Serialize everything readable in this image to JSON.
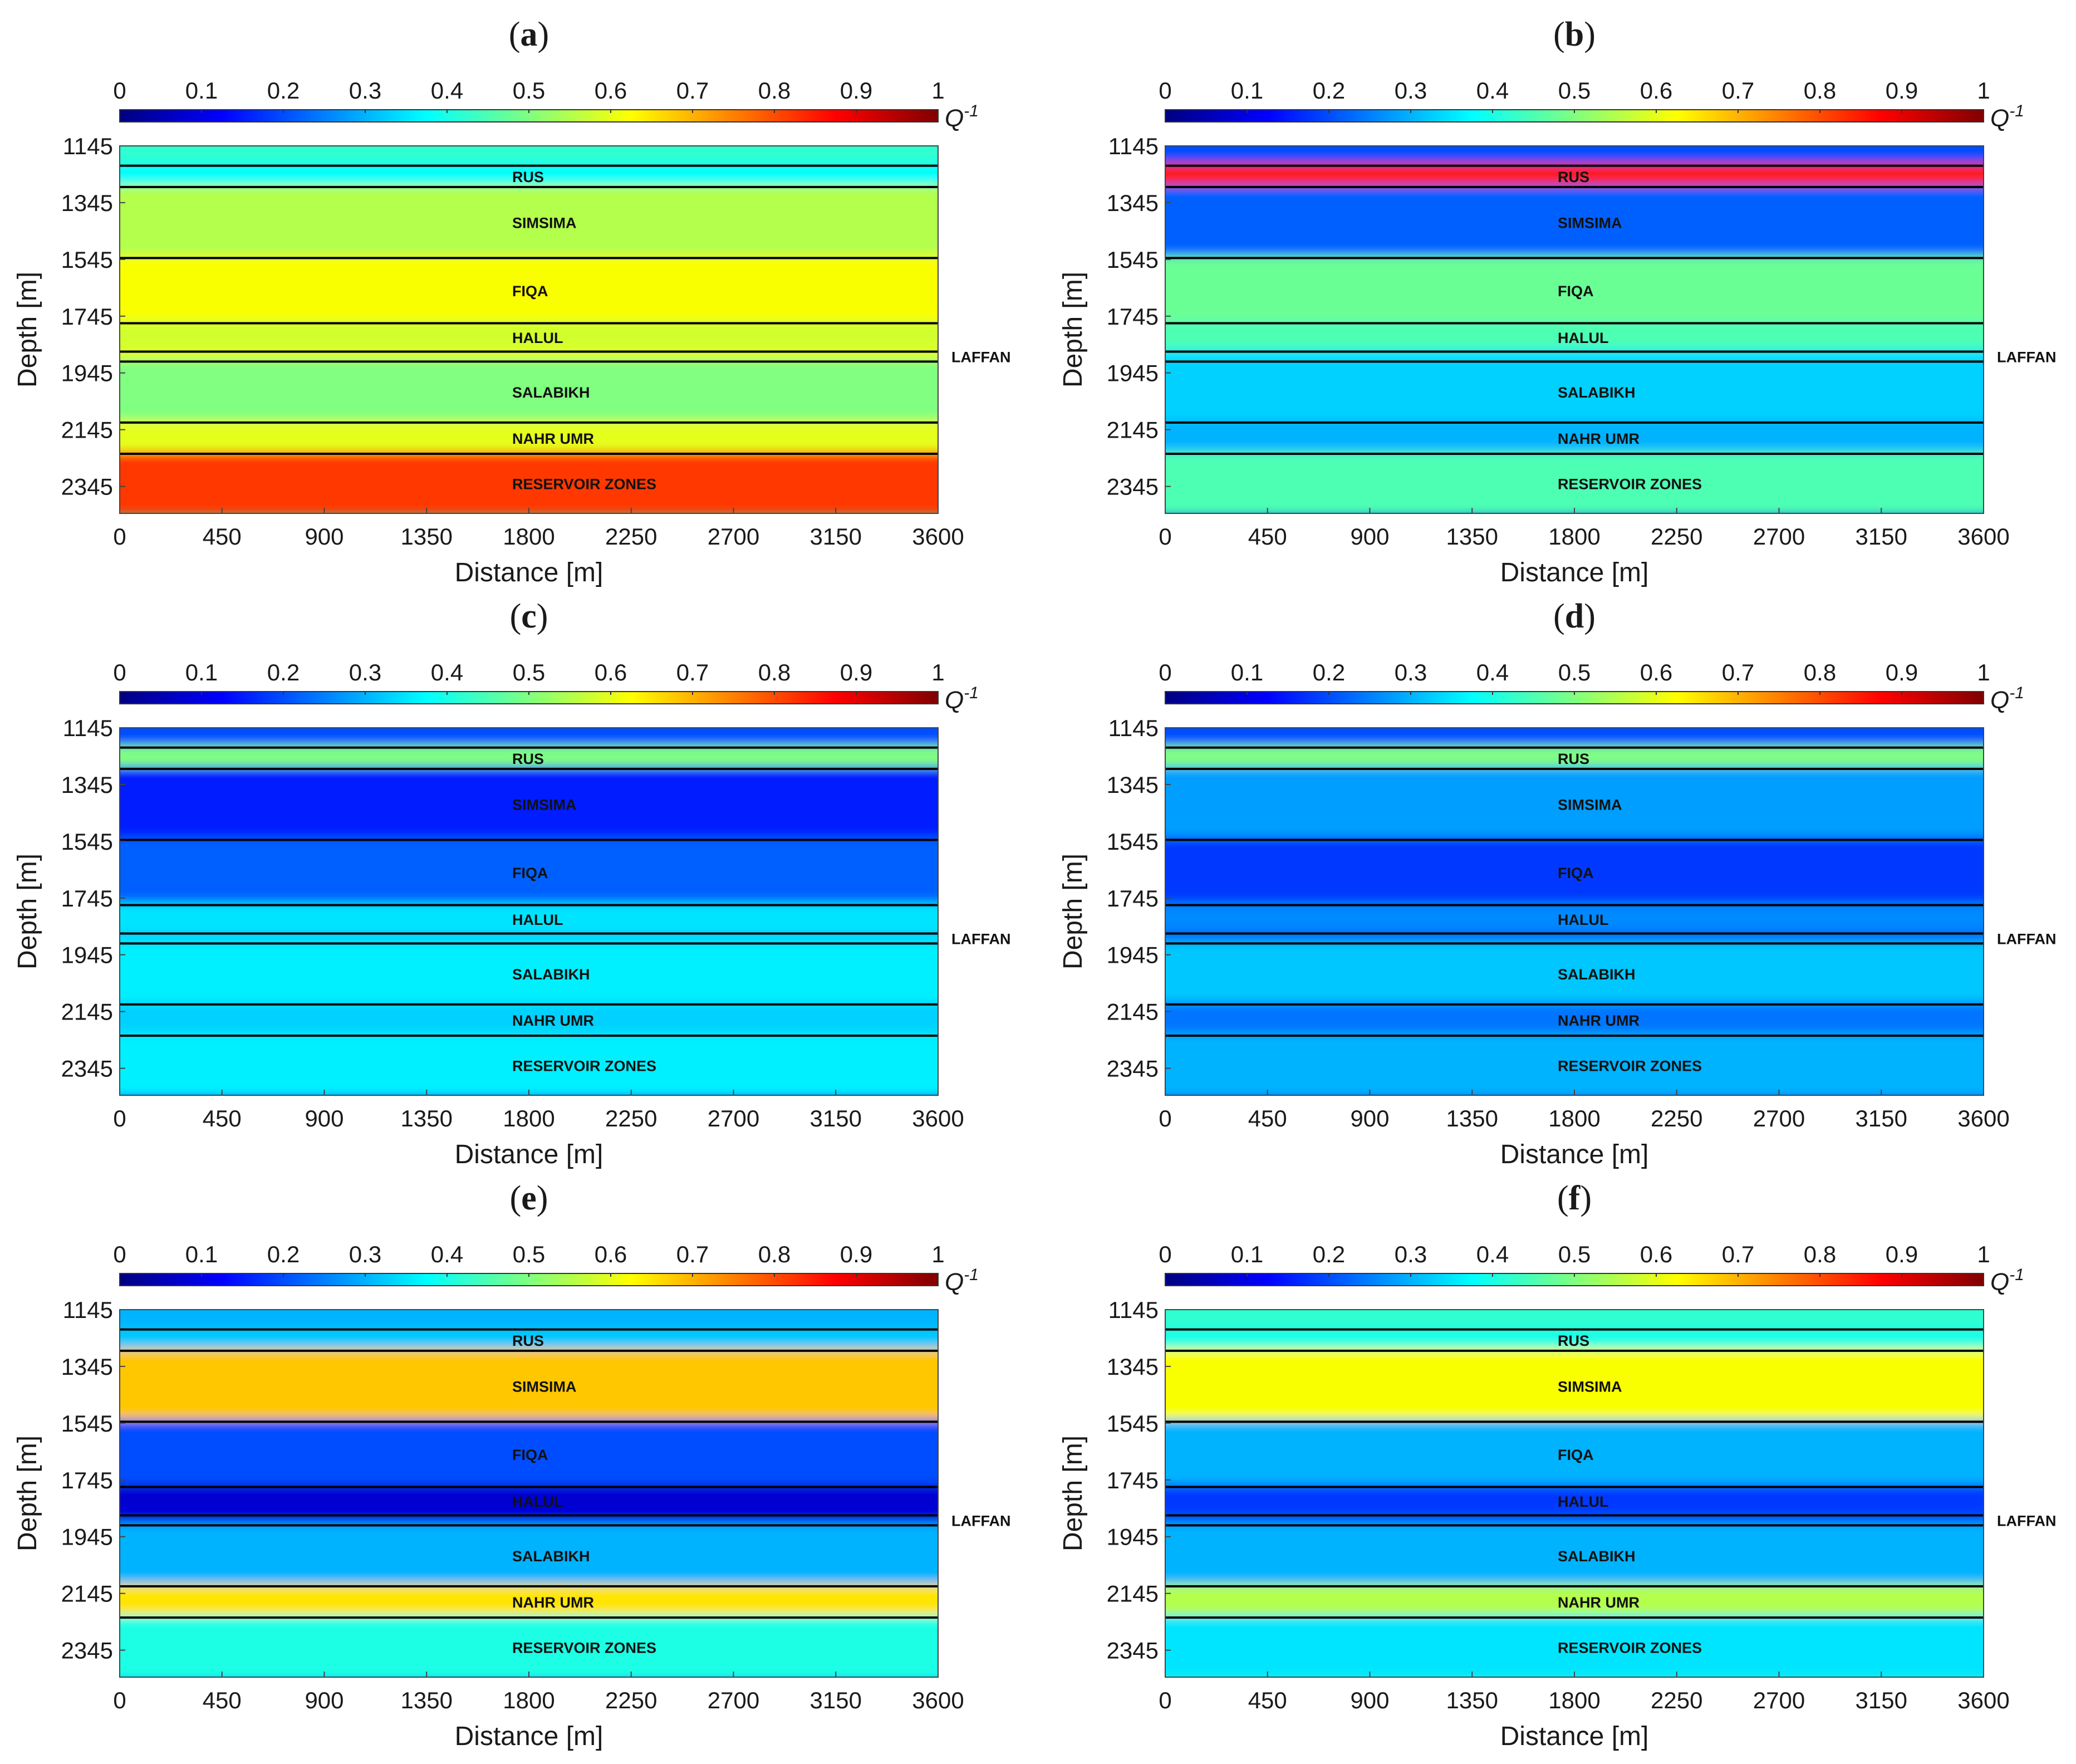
{
  "figure": {
    "colorbar_label": "Q",
    "colorbar_exponent": "-1",
    "colorbar_ticks": [
      "0",
      "0.1",
      "0.2",
      "0.3",
      "0.4",
      "0.5",
      "0.6",
      "0.7",
      "0.8",
      "0.9",
      "1"
    ],
    "xlabel": "Distance [m]",
    "ylabel": "Depth [m]",
    "x_ticks": [
      "0",
      "450",
      "900",
      "1350",
      "1800",
      "2250",
      "2700",
      "3150",
      "3600"
    ],
    "y_ticks": [
      "1145",
      "1345",
      "1545",
      "1745",
      "1945",
      "2145",
      "2345"
    ],
    "zones": [
      "RUS",
      "SIMSIMA",
      "FIQA",
      "HALUL",
      "SALABIKH",
      "NAHR UMR",
      "RESERVOIR ZONES"
    ],
    "side_label": "LAFFAN"
  },
  "chart_data": [
    {
      "panel": "a",
      "type": "heatmap",
      "xlabel": "Distance [m]",
      "ylabel": "Depth [m]",
      "xlim": [
        0,
        3600
      ],
      "ylim": [
        1145,
        2440
      ],
      "clim": [
        0,
        1
      ],
      "colorbar": "Q-1",
      "boundaries": [
        1215,
        1290,
        1540,
        1770,
        1870,
        1905,
        2120,
        2230
      ],
      "layers": [
        {
          "name": "top",
          "top": 1145,
          "bottom": 1215,
          "value": 0.42
        },
        {
          "name": "RUS",
          "top": 1215,
          "bottom": 1290,
          "value": 0.38
        },
        {
          "name": "SIMSIMA",
          "top": 1290,
          "bottom": 1540,
          "value": 0.55
        },
        {
          "name": "FIQA",
          "top": 1540,
          "bottom": 1770,
          "value": 0.62
        },
        {
          "name": "HALUL",
          "top": 1770,
          "bottom": 1870,
          "value": 0.58
        },
        {
          "name": "LAFFAN",
          "top": 1870,
          "bottom": 1905,
          "value": 0.6
        },
        {
          "name": "SALABIKH",
          "top": 1905,
          "bottom": 2120,
          "value": 0.5
        },
        {
          "name": "NAHR UMR",
          "top": 2120,
          "bottom": 2230,
          "value": 0.6
        },
        {
          "name": "RESERVOIR ZONES",
          "top": 2230,
          "bottom": 2440,
          "value": 0.82
        }
      ]
    },
    {
      "panel": "b",
      "type": "heatmap",
      "xlabel": "Distance [m]",
      "ylabel": "Depth [m]",
      "xlim": [
        0,
        3600
      ],
      "ylim": [
        1145,
        2440
      ],
      "clim": [
        0,
        1
      ],
      "colorbar": "Q-1",
      "boundaries": [
        1215,
        1290,
        1540,
        1770,
        1870,
        1905,
        2120,
        2230
      ],
      "layers": [
        {
          "name": "top",
          "top": 1145,
          "bottom": 1215,
          "value": 0.2
        },
        {
          "name": "RUS",
          "top": 1215,
          "bottom": 1290,
          "value": 0.85
        },
        {
          "name": "SIMSIMA",
          "top": 1290,
          "bottom": 1540,
          "value": 0.22
        },
        {
          "name": "FIQA",
          "top": 1540,
          "bottom": 1770,
          "value": 0.48
        },
        {
          "name": "HALUL",
          "top": 1770,
          "bottom": 1870,
          "value": 0.45
        },
        {
          "name": "LAFFAN",
          "top": 1870,
          "bottom": 1905,
          "value": 0.35
        },
        {
          "name": "SALABIKH",
          "top": 1905,
          "bottom": 2120,
          "value": 0.33
        },
        {
          "name": "NAHR UMR",
          "top": 2120,
          "bottom": 2230,
          "value": 0.3
        },
        {
          "name": "RESERVOIR ZONES",
          "top": 2230,
          "bottom": 2440,
          "value": 0.45
        }
      ]
    },
    {
      "panel": "c",
      "type": "heatmap",
      "xlabel": "Distance [m]",
      "ylabel": "Depth [m]",
      "xlim": [
        0,
        3600
      ],
      "ylim": [
        1145,
        2440
      ],
      "clim": [
        0,
        1
      ],
      "colorbar": "Q-1",
      "boundaries": [
        1215,
        1290,
        1540,
        1770,
        1870,
        1905,
        2120,
        2230
      ],
      "layers": [
        {
          "name": "top",
          "top": 1145,
          "bottom": 1215,
          "value": 0.2
        },
        {
          "name": "RUS",
          "top": 1215,
          "bottom": 1290,
          "value": 0.5
        },
        {
          "name": "SIMSIMA",
          "top": 1290,
          "bottom": 1540,
          "value": 0.15
        },
        {
          "name": "FIQA",
          "top": 1540,
          "bottom": 1770,
          "value": 0.22
        },
        {
          "name": "HALUL",
          "top": 1770,
          "bottom": 1870,
          "value": 0.35
        },
        {
          "name": "LAFFAN",
          "top": 1870,
          "bottom": 1905,
          "value": 0.33
        },
        {
          "name": "SALABIKH",
          "top": 1905,
          "bottom": 2120,
          "value": 0.36
        },
        {
          "name": "NAHR UMR",
          "top": 2120,
          "bottom": 2230,
          "value": 0.33
        },
        {
          "name": "RESERVOIR ZONES",
          "top": 2230,
          "bottom": 2440,
          "value": 0.36
        }
      ]
    },
    {
      "panel": "d",
      "type": "heatmap",
      "xlabel": "Distance [m]",
      "ylabel": "Depth [m]",
      "xlim": [
        0,
        3600
      ],
      "ylim": [
        1145,
        2440
      ],
      "clim": [
        0,
        1
      ],
      "colorbar": "Q-1",
      "boundaries": [
        1215,
        1290,
        1540,
        1770,
        1870,
        1905,
        2120,
        2230
      ],
      "layers": [
        {
          "name": "top",
          "top": 1145,
          "bottom": 1215,
          "value": 0.2
        },
        {
          "name": "RUS",
          "top": 1215,
          "bottom": 1290,
          "value": 0.5
        },
        {
          "name": "SIMSIMA",
          "top": 1290,
          "bottom": 1540,
          "value": 0.28
        },
        {
          "name": "FIQA",
          "top": 1540,
          "bottom": 1770,
          "value": 0.18
        },
        {
          "name": "HALUL",
          "top": 1770,
          "bottom": 1870,
          "value": 0.26
        },
        {
          "name": "LAFFAN",
          "top": 1870,
          "bottom": 1905,
          "value": 0.22
        },
        {
          "name": "SALABIKH",
          "top": 1905,
          "bottom": 2120,
          "value": 0.32
        },
        {
          "name": "NAHR UMR",
          "top": 2120,
          "bottom": 2230,
          "value": 0.24
        },
        {
          "name": "RESERVOIR ZONES",
          "top": 2230,
          "bottom": 2440,
          "value": 0.3
        }
      ]
    },
    {
      "panel": "e",
      "type": "heatmap",
      "xlabel": "Distance [m]",
      "ylabel": "Depth [m]",
      "xlim": [
        0,
        3600
      ],
      "ylim": [
        1145,
        2440
      ],
      "clim": [
        0,
        1
      ],
      "colorbar": "Q-1",
      "boundaries": [
        1215,
        1290,
        1540,
        1770,
        1870,
        1905,
        2120,
        2230
      ],
      "layers": [
        {
          "name": "top",
          "top": 1145,
          "bottom": 1215,
          "value": 0.3
        },
        {
          "name": "RUS",
          "top": 1215,
          "bottom": 1290,
          "value": 0.32
        },
        {
          "name": "SIMSIMA",
          "top": 1290,
          "bottom": 1540,
          "value": 0.68
        },
        {
          "name": "FIQA",
          "top": 1540,
          "bottom": 1770,
          "value": 0.2
        },
        {
          "name": "HALUL",
          "top": 1770,
          "bottom": 1870,
          "value": 0.08
        },
        {
          "name": "LAFFAN",
          "top": 1870,
          "bottom": 1905,
          "value": 0.1
        },
        {
          "name": "SALABIKH",
          "top": 1905,
          "bottom": 2120,
          "value": 0.3
        },
        {
          "name": "NAHR UMR",
          "top": 2120,
          "bottom": 2230,
          "value": 0.65
        },
        {
          "name": "RESERVOIR ZONES",
          "top": 2230,
          "bottom": 2440,
          "value": 0.4
        }
      ]
    },
    {
      "panel": "f",
      "type": "heatmap",
      "xlabel": "Distance [m]",
      "ylabel": "Depth [m]",
      "xlim": [
        0,
        3600
      ],
      "ylim": [
        1145,
        2440
      ],
      "clim": [
        0,
        1
      ],
      "colorbar": "Q-1",
      "boundaries": [
        1215,
        1290,
        1540,
        1770,
        1870,
        1905,
        2120,
        2230
      ],
      "layers": [
        {
          "name": "top",
          "top": 1145,
          "bottom": 1215,
          "value": 0.42
        },
        {
          "name": "RUS",
          "top": 1215,
          "bottom": 1290,
          "value": 0.4
        },
        {
          "name": "SIMSIMA",
          "top": 1290,
          "bottom": 1540,
          "value": 0.62
        },
        {
          "name": "FIQA",
          "top": 1540,
          "bottom": 1770,
          "value": 0.3
        },
        {
          "name": "HALUL",
          "top": 1770,
          "bottom": 1870,
          "value": 0.18
        },
        {
          "name": "LAFFAN",
          "top": 1870,
          "bottom": 1905,
          "value": 0.2
        },
        {
          "name": "SALABIKH",
          "top": 1905,
          "bottom": 2120,
          "value": 0.3
        },
        {
          "name": "NAHR UMR",
          "top": 2120,
          "bottom": 2230,
          "value": 0.55
        },
        {
          "name": "RESERVOIR ZONES",
          "top": 2230,
          "bottom": 2440,
          "value": 0.35
        }
      ]
    }
  ]
}
